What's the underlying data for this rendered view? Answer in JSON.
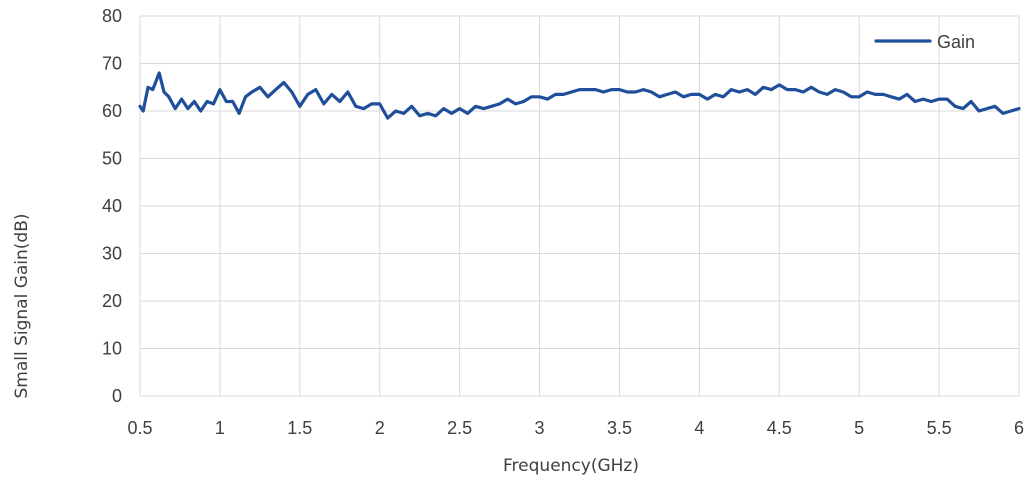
{
  "chart_data": {
    "type": "line",
    "title": "",
    "xlabel": "Frequency(GHz)",
    "ylabel": "Small Signal Gain(dB)",
    "xlim": [
      0.5,
      6
    ],
    "ylim": [
      0,
      80
    ],
    "x_ticks": [
      "0.5",
      "1",
      "1.5",
      "2",
      "2.5",
      "3",
      "3.5",
      "4",
      "4.5",
      "5",
      "5.5",
      "6"
    ],
    "y_ticks": [
      "0",
      "10",
      "20",
      "30",
      "40",
      "50",
      "60",
      "70",
      "80"
    ],
    "grid": true,
    "legend": {
      "position": "top-right"
    },
    "series": [
      {
        "name": "Gain",
        "color": "#1f4e9a",
        "points": [
          [
            0.5,
            61.0
          ],
          [
            0.52,
            60.0
          ],
          [
            0.55,
            65.0
          ],
          [
            0.58,
            64.5
          ],
          [
            0.62,
            68.0
          ],
          [
            0.65,
            64.0
          ],
          [
            0.68,
            63.0
          ],
          [
            0.72,
            60.5
          ],
          [
            0.76,
            62.5
          ],
          [
            0.8,
            60.5
          ],
          [
            0.84,
            62.0
          ],
          [
            0.88,
            60.0
          ],
          [
            0.92,
            62.0
          ],
          [
            0.96,
            61.5
          ],
          [
            1.0,
            64.5
          ],
          [
            1.04,
            62.0
          ],
          [
            1.08,
            62.0
          ],
          [
            1.12,
            59.5
          ],
          [
            1.16,
            63.0
          ],
          [
            1.2,
            64.0
          ],
          [
            1.25,
            65.0
          ],
          [
            1.3,
            63.0
          ],
          [
            1.35,
            64.5
          ],
          [
            1.4,
            66.0
          ],
          [
            1.45,
            64.0
          ],
          [
            1.5,
            61.0
          ],
          [
            1.55,
            63.5
          ],
          [
            1.6,
            64.5
          ],
          [
            1.65,
            61.5
          ],
          [
            1.7,
            63.5
          ],
          [
            1.75,
            62.0
          ],
          [
            1.8,
            64.0
          ],
          [
            1.85,
            61.0
          ],
          [
            1.9,
            60.5
          ],
          [
            1.95,
            61.5
          ],
          [
            2.0,
            61.5
          ],
          [
            2.05,
            58.5
          ],
          [
            2.1,
            60.0
          ],
          [
            2.15,
            59.5
          ],
          [
            2.2,
            61.0
          ],
          [
            2.25,
            59.0
          ],
          [
            2.3,
            59.5
          ],
          [
            2.35,
            59.0
          ],
          [
            2.4,
            60.5
          ],
          [
            2.45,
            59.5
          ],
          [
            2.5,
            60.5
          ],
          [
            2.55,
            59.5
          ],
          [
            2.6,
            61.0
          ],
          [
            2.65,
            60.5
          ],
          [
            2.7,
            61.0
          ],
          [
            2.75,
            61.5
          ],
          [
            2.8,
            62.5
          ],
          [
            2.85,
            61.5
          ],
          [
            2.9,
            62.0
          ],
          [
            2.95,
            63.0
          ],
          [
            3.0,
            63.0
          ],
          [
            3.05,
            62.5
          ],
          [
            3.1,
            63.5
          ],
          [
            3.15,
            63.5
          ],
          [
            3.2,
            64.0
          ],
          [
            3.25,
            64.5
          ],
          [
            3.3,
            64.5
          ],
          [
            3.35,
            64.5
          ],
          [
            3.4,
            64.0
          ],
          [
            3.45,
            64.5
          ],
          [
            3.5,
            64.5
          ],
          [
            3.55,
            64.0
          ],
          [
            3.6,
            64.0
          ],
          [
            3.65,
            64.5
          ],
          [
            3.7,
            64.0
          ],
          [
            3.75,
            63.0
          ],
          [
            3.8,
            63.5
          ],
          [
            3.85,
            64.0
          ],
          [
            3.9,
            63.0
          ],
          [
            3.95,
            63.5
          ],
          [
            4.0,
            63.5
          ],
          [
            4.05,
            62.5
          ],
          [
            4.1,
            63.5
          ],
          [
            4.15,
            63.0
          ],
          [
            4.2,
            64.5
          ],
          [
            4.25,
            64.0
          ],
          [
            4.3,
            64.5
          ],
          [
            4.35,
            63.5
          ],
          [
            4.4,
            65.0
          ],
          [
            4.45,
            64.5
          ],
          [
            4.5,
            65.5
          ],
          [
            4.55,
            64.5
          ],
          [
            4.6,
            64.5
          ],
          [
            4.65,
            64.0
          ],
          [
            4.7,
            65.0
          ],
          [
            4.75,
            64.0
          ],
          [
            4.8,
            63.5
          ],
          [
            4.85,
            64.5
          ],
          [
            4.9,
            64.0
          ],
          [
            4.95,
            63.0
          ],
          [
            5.0,
            63.0
          ],
          [
            5.05,
            64.0
          ],
          [
            5.1,
            63.5
          ],
          [
            5.15,
            63.5
          ],
          [
            5.2,
            63.0
          ],
          [
            5.25,
            62.5
          ],
          [
            5.3,
            63.5
          ],
          [
            5.35,
            62.0
          ],
          [
            5.4,
            62.5
          ],
          [
            5.45,
            62.0
          ],
          [
            5.5,
            62.5
          ],
          [
            5.55,
            62.5
          ],
          [
            5.6,
            61.0
          ],
          [
            5.65,
            60.5
          ],
          [
            5.7,
            62.0
          ],
          [
            5.75,
            60.0
          ],
          [
            5.8,
            60.5
          ],
          [
            5.85,
            61.0
          ],
          [
            5.9,
            59.5
          ],
          [
            5.95,
            60.0
          ],
          [
            6.0,
            60.5
          ]
        ]
      }
    ]
  }
}
